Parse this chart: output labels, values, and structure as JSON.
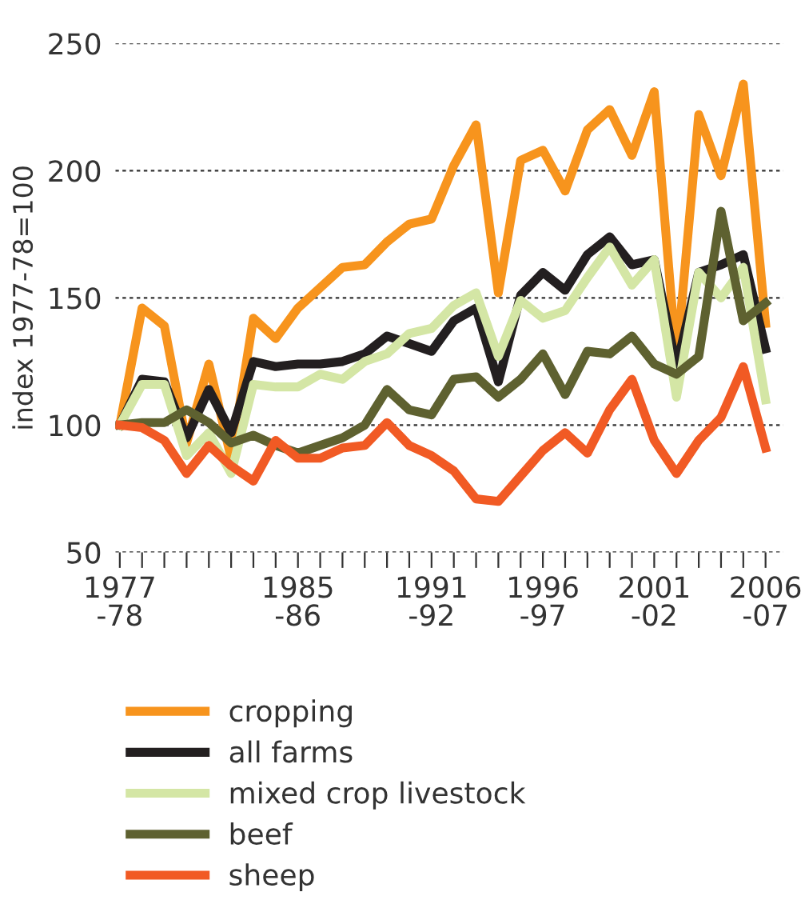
{
  "chart_data": {
    "type": "line",
    "ylabel": "index 1977-78=100",
    "categories": [
      "1977\n-78",
      null,
      null,
      null,
      null,
      null,
      null,
      null,
      "1985\n-86",
      null,
      null,
      null,
      null,
      null,
      "1991\n-92",
      null,
      null,
      null,
      null,
      "1996\n-97",
      null,
      null,
      null,
      null,
      "2001\n-02",
      null,
      null,
      null,
      null,
      "2006\n-07"
    ],
    "series": [
      {
        "name": "cropping",
        "color": "#f7941d",
        "values": [
          100,
          146,
          139,
          93,
          124,
          87,
          142,
          134,
          146,
          154,
          162,
          163,
          172,
          179,
          181,
          202,
          218,
          152,
          204,
          208,
          192,
          216,
          224,
          206,
          231,
          125,
          222,
          198,
          234,
          140
        ]
      },
      {
        "name": "all farms",
        "color": "#231f20",
        "values": [
          100,
          118,
          117,
          95,
          114,
          97,
          125,
          123,
          124,
          124,
          125,
          128,
          135,
          132,
          129,
          141,
          146,
          117,
          151,
          160,
          153,
          167,
          174,
          163,
          165,
          123,
          160,
          163,
          167,
          130
        ]
      },
      {
        "name": "mixed crop livestock",
        "color": "#d4e6a5",
        "values": [
          100,
          116,
          116,
          88,
          97,
          81,
          116,
          115,
          115,
          120,
          118,
          125,
          128,
          136,
          138,
          147,
          152,
          127,
          149,
          142,
          145,
          158,
          170,
          155,
          165,
          111,
          160,
          150,
          162,
          110
        ]
      },
      {
        "name": "beef",
        "color": "#5e6130",
        "values": [
          100,
          101,
          101,
          106,
          101,
          93,
          96,
          92,
          89,
          92,
          95,
          100,
          114,
          106,
          104,
          118,
          119,
          111,
          118,
          128,
          112,
          129,
          128,
          135,
          124,
          120,
          127,
          184,
          141,
          148
        ]
      },
      {
        "name": "sheep",
        "color": "#f15a24",
        "values": [
          100,
          99,
          94,
          81,
          92,
          84,
          78,
          94,
          87,
          87,
          91,
          92,
          101,
          92,
          88,
          82,
          71,
          70,
          80,
          90,
          97,
          89,
          106,
          118,
          94,
          81,
          94,
          103,
          123,
          91
        ]
      }
    ],
    "ylim": [
      50,
      250
    ],
    "yticks": [
      50,
      100,
      150,
      200,
      250
    ],
    "grid": "y",
    "legend": "bottom",
    "marker": "none",
    "line_style": "solid"
  }
}
